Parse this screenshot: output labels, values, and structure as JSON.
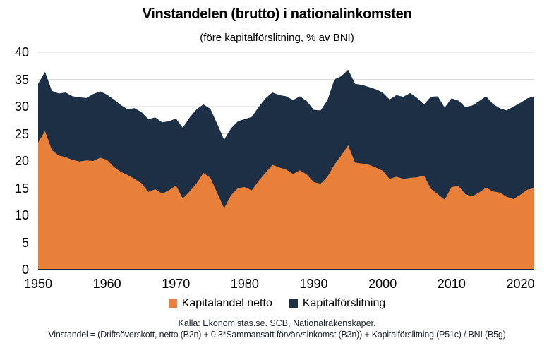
{
  "header": {
    "title": "Vinstandelen (brutto) i nationalinkomsten",
    "subtitle": "(före kapitalförslitning, % av BNI)"
  },
  "footer": {
    "source": "Källa: Ekonomistas.se. SCB, Nationalräkenskaper.",
    "formula": "Vinstandel = (Driftsöverskott, netto (B2n) + 0.3*Sammansatt förvärvsinkomst (B3n)) + Kapitalförslitning (P51c) / BNI (B5g)"
  },
  "chart_data": {
    "type": "area",
    "stacked": true,
    "title": "Vinstandelen (brutto) i nationalinkomsten",
    "subtitle": "(före kapitalförslitning, % av BNI)",
    "x": [
      1950,
      1951,
      1952,
      1953,
      1954,
      1955,
      1956,
      1957,
      1958,
      1959,
      1960,
      1961,
      1962,
      1963,
      1964,
      1965,
      1966,
      1967,
      1968,
      1969,
      1970,
      1971,
      1972,
      1973,
      1974,
      1975,
      1976,
      1977,
      1978,
      1979,
      1980,
      1981,
      1982,
      1983,
      1984,
      1985,
      1986,
      1987,
      1988,
      1989,
      1990,
      1991,
      1992,
      1993,
      1994,
      1995,
      1996,
      1997,
      1998,
      1999,
      2000,
      2001,
      2002,
      2003,
      2004,
      2005,
      2006,
      2007,
      2008,
      2009,
      2010,
      2011,
      2012,
      2013,
      2014,
      2015,
      2016,
      2017,
      2018,
      2019,
      2020,
      2021,
      2022
    ],
    "series": [
      {
        "name": "Kapitalandel netto",
        "color": "#E8803A",
        "values": [
          23.4,
          25.5,
          22.0,
          21.0,
          20.7,
          20.2,
          19.9,
          20.1,
          20.0,
          20.6,
          20.2,
          18.9,
          18.0,
          17.4,
          16.7,
          15.9,
          14.3,
          14.8,
          14.0,
          14.6,
          15.5,
          13.1,
          14.4,
          15.9,
          17.8,
          16.9,
          14.1,
          11.3,
          13.7,
          15.0,
          15.2,
          14.6,
          16.3,
          17.8,
          19.3,
          18.8,
          18.4,
          17.6,
          18.3,
          17.5,
          16.1,
          15.8,
          17.1,
          19.3,
          21.0,
          22.9,
          19.7,
          19.5,
          19.3,
          18.8,
          18.2,
          16.7,
          17.1,
          16.7,
          16.9,
          17.0,
          17.3,
          14.9,
          13.9,
          12.9,
          15.2,
          15.4,
          13.9,
          13.5,
          14.2,
          15.1,
          14.4,
          14.2,
          13.4,
          13.0,
          13.8,
          14.7,
          15.0
        ]
      },
      {
        "name": "Kapitalförslitning",
        "color": "#1C2F45",
        "values": [
          10.8,
          10.9,
          10.9,
          11.4,
          11.9,
          11.7,
          11.8,
          11.5,
          12.3,
          12.2,
          12.0,
          12.4,
          12.3,
          12.1,
          13.0,
          13.1,
          13.4,
          13.2,
          13.1,
          12.7,
          12.3,
          13.0,
          13.6,
          13.6,
          12.6,
          12.7,
          12.7,
          12.6,
          12.3,
          12.3,
          12.5,
          13.5,
          13.6,
          13.7,
          13.3,
          13.3,
          13.5,
          13.6,
          13.6,
          13.5,
          13.3,
          13.5,
          14.1,
          15.7,
          14.6,
          13.9,
          14.5,
          14.5,
          14.3,
          14.4,
          14.4,
          14.6,
          15.0,
          15.1,
          15.6,
          14.6,
          13.1,
          16.9,
          18.0,
          16.9,
          16.3,
          15.7,
          16.0,
          16.7,
          16.8,
          16.8,
          16.1,
          15.5,
          15.9,
          17.0,
          16.9,
          16.8,
          16.9
        ]
      }
    ],
    "ylabel": "",
    "xlabel": "",
    "ylim": [
      0,
      40
    ],
    "yticks": [
      0,
      5,
      10,
      15,
      20,
      25,
      30,
      35,
      40
    ],
    "xticks": [
      1950,
      1960,
      1970,
      1980,
      1990,
      2000,
      2010,
      2020
    ],
    "grid": true,
    "gridline_color": "#D9D9D9",
    "axis_line_color": "#17293D",
    "legend_position": "bottom"
  }
}
